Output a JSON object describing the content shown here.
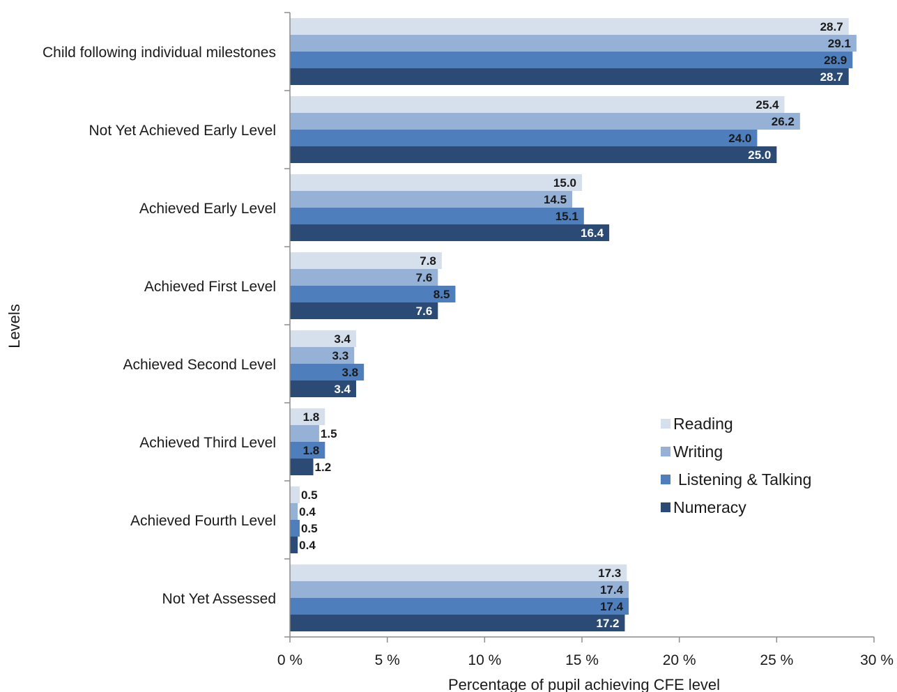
{
  "chart_data": {
    "type": "bar",
    "orientation": "horizontal",
    "categories": [
      "Child following individual milestones",
      "Not Yet Achieved Early Level",
      "Achieved Early Level",
      "Achieved First Level",
      "Achieved Second Level",
      "Achieved Third Level",
      "Achieved Fourth Level",
      "Not Yet Assessed"
    ],
    "series": [
      {
        "name": "Reading",
        "color": "#d6dfec",
        "label_color": "#1a1a1a",
        "values": [
          28.7,
          25.4,
          15.0,
          7.8,
          3.4,
          1.8,
          0.5,
          17.3
        ]
      },
      {
        "name": "Writing",
        "color": "#95b1d6",
        "label_color": "#1a1a1a",
        "values": [
          29.1,
          26.2,
          14.5,
          7.6,
          3.3,
          1.5,
          0.4,
          17.4
        ]
      },
      {
        "name": "Listening & Talking",
        "color": "#4f7ebc",
        "label_color": "#1a1a1a",
        "values": [
          28.9,
          24.0,
          15.1,
          8.5,
          3.8,
          1.8,
          0.5,
          17.4
        ]
      },
      {
        "name": "Numeracy",
        "color": "#2b4a74",
        "label_color": "#ffffff",
        "values": [
          28.7,
          25.0,
          16.4,
          7.6,
          3.4,
          1.2,
          0.4,
          17.2
        ]
      }
    ],
    "value_labels": [
      [
        "28.7",
        "25.4",
        "15.0",
        "7.8",
        "3.4",
        "1.8",
        "0.5",
        "17.3"
      ],
      [
        "29.1",
        "26.2",
        "14.5",
        "7.6",
        "3.3",
        "1.5",
        "0.4",
        "17.4"
      ],
      [
        "28.9",
        "24.0",
        "15.1",
        "8.5",
        "3.8",
        "1.8",
        "0.5",
        "17.4"
      ],
      [
        "28.7",
        "25.0",
        "16.4",
        "7.6",
        "3.4",
        "1.2",
        "0.4",
        "17.2"
      ]
    ],
    "xlim": [
      0,
      30
    ],
    "xticks": [
      0,
      5,
      10,
      15,
      20,
      25,
      30
    ],
    "xtick_labels": [
      "0 %",
      "5 %",
      "10 %",
      "15 %",
      "20 %",
      "25 %",
      "30 %"
    ],
    "xlabel": "Percentage of pupil achieving  CFE level",
    "ylabel": "Levels",
    "grid": false,
    "legend_position": "right"
  }
}
